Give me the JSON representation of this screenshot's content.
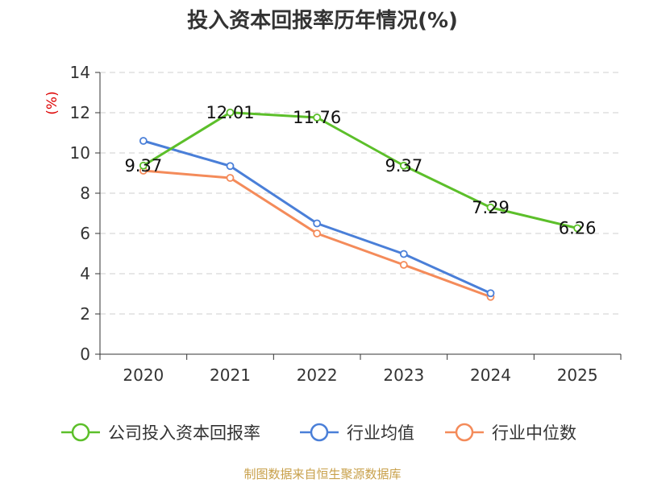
{
  "chart_data": {
    "type": "line",
    "title": "投入资本回报率历年情况(%)",
    "unit_label": "(%)",
    "categories": [
      "2020",
      "2021",
      "2022",
      "2023",
      "2024",
      "2025"
    ],
    "ylim": [
      0,
      14
    ],
    "yticks": [
      0,
      2,
      4,
      6,
      8,
      10,
      12,
      14
    ],
    "grid": true,
    "legend_position": "bottom",
    "series": [
      {
        "name": "公司投入资本回报率",
        "color": "#5cbf2a",
        "values": [
          9.37,
          12.01,
          11.76,
          9.37,
          7.29,
          6.26
        ],
        "labels": [
          "9.37",
          "12.01",
          "11.76",
          "9.37",
          "7.29",
          "6.26"
        ]
      },
      {
        "name": "行业均值",
        "color": "#4a7fd8",
        "values": [
          10.6,
          9.35,
          6.5,
          4.98,
          3.03,
          null
        ]
      },
      {
        "name": "行业中位数",
        "color": "#f48b5a",
        "values": [
          9.12,
          8.76,
          6.0,
          4.44,
          2.85,
          null
        ]
      }
    ]
  },
  "source": "制图数据来自恒生聚源数据库"
}
